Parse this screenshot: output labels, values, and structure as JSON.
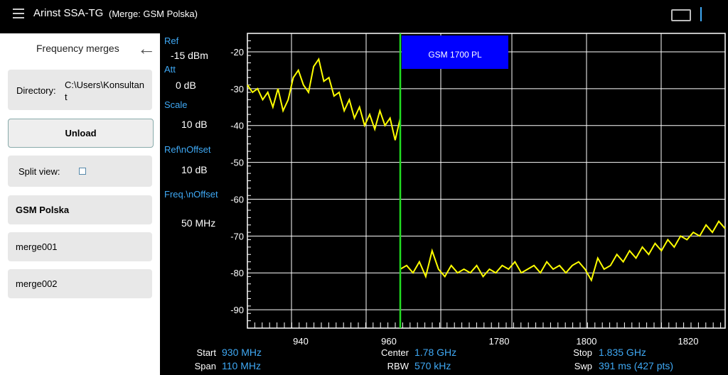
{
  "app_bar": {
    "title": "Arinst SSA-TG",
    "subtitle": "(Merge: GSM Polska)"
  },
  "side_panel": {
    "title": "Frequency merges",
    "directory_label": "Directory:",
    "directory_value": "C:\\Users\\Konsultant",
    "unload": "Unload",
    "split_view": "Split view:",
    "merges": [
      "GSM Polska",
      "merge001",
      "merge002"
    ]
  },
  "settings": [
    {
      "label": "Ref",
      "value": "-15 dBm"
    },
    {
      "label": "Att",
      "value": "0  dB"
    },
    {
      "label": "Scale",
      "value": "10  dB"
    },
    {
      "label": "Ref\\nOffset",
      "value": "10  dB"
    },
    {
      "label": "Freq.\\nOffset",
      "value": "50 MHz"
    }
  ],
  "chart_data": {
    "type": "line",
    "ylim": [
      -95,
      -15
    ],
    "yticks": [
      -20,
      -30,
      -40,
      -50,
      -60,
      -70,
      -80,
      -90
    ],
    "x_tick_labels": [
      "940",
      "960",
      "1780",
      "1800",
      "1820"
    ],
    "grid": true,
    "series": [
      {
        "color": "#ffff00",
        "values": [
          -29,
          -31,
          -30,
          -33,
          -31,
          -35,
          -30,
          -36,
          -33,
          -27,
          -25,
          -29,
          -31,
          -24,
          -22,
          -28,
          -27,
          -32,
          -31,
          -36,
          -33,
          -38,
          -35,
          -40,
          -37,
          -41,
          -36,
          -40,
          -38,
          -44,
          -38
        ]
      },
      {
        "color": "#ffff00",
        "values": [
          -79,
          -78,
          -80,
          -77,
          -81,
          -74,
          -79,
          -81,
          -78,
          -80,
          -79,
          -80,
          -78,
          -81,
          -79,
          -80,
          -78,
          -79,
          -77,
          -80,
          -79,
          -78,
          -80,
          -77,
          -79,
          -78,
          -80,
          -78,
          -77,
          -79,
          -82,
          -76,
          -79,
          -78,
          -75,
          -77,
          -74,
          -76,
          -73,
          -75,
          -72,
          -74,
          -71,
          -73,
          -70,
          -71,
          -69,
          -70,
          -67,
          -69,
          -66,
          -68
        ]
      }
    ],
    "marker": {
      "label": "GSM 1700 PL",
      "color": "#0000ff",
      "line_color": "#22dd22"
    }
  },
  "footer": [
    {
      "label": "Start",
      "value": "930 MHz"
    },
    {
      "label": "Span",
      "value": "110 MHz"
    },
    {
      "label": "Center",
      "value": "1.78 GHz"
    },
    {
      "label": "RBW",
      "value": "570 kHz"
    },
    {
      "label": "Stop",
      "value": "1.835 GHz"
    },
    {
      "label": "Swp",
      "value": "391  ms (427 pts)"
    }
  ]
}
